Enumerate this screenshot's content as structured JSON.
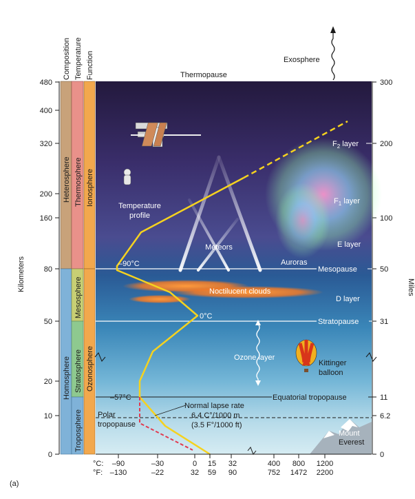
{
  "columns": {
    "composition": "Composition",
    "temperature": "Temperature",
    "function": "Function"
  },
  "bands": {
    "heterosphere": "Heterosphere",
    "homosphere": "Homosphere",
    "thermosphere": "Thermosphere",
    "mesosphere": "Mesosphere",
    "stratosphere": "Stratosphere",
    "troposphere": "Troposphere",
    "ionosphere": "Ionosphere",
    "ozonosphere": "Ozonosphere"
  },
  "axes": {
    "left_label": "Kilometers",
    "right_label": "Miles",
    "km_ticks": [
      "480",
      "400",
      "320",
      "200",
      "160",
      "80",
      "50",
      "20",
      "10",
      "0"
    ],
    "mi_ticks": [
      "300",
      "200",
      "100",
      "50",
      "31",
      "11",
      "6.2",
      "0"
    ],
    "c_prefix": "°C:",
    "f_prefix": "°F:",
    "c_ticks": [
      "–90",
      "–30",
      "0",
      "15",
      "32",
      "400",
      "800",
      "1200"
    ],
    "f_ticks": [
      "–130",
      "–22",
      "32",
      "59",
      "90",
      "752",
      "1472",
      "2200"
    ]
  },
  "labels": {
    "exosphere": "Exosphere",
    "thermopause": "Thermopause",
    "f2_layer_main": "F",
    "f2_layer_sub": "2",
    "f2_layer_rest": " layer",
    "f1_layer_main": "F",
    "f1_layer_sub": "1",
    "f1_layer_rest": " layer",
    "e_layer": "E layer",
    "d_layer": "D layer",
    "temperature_profile_1": "Temperature",
    "temperature_profile_2": "profile",
    "meteors": "Meteors",
    "auroras": "Auroras",
    "mesopause": "Mesopause",
    "minus90": "–90°C",
    "noctilucent": "Noctilucent clouds",
    "zero_c": "0°C",
    "stratopause": "Stratopause",
    "ozone_layer": "Ozone layer",
    "kittinger_1": "Kittinger",
    "kittinger_2": "balloon",
    "minus57": "–57°C",
    "equatorial_tropopause": "Equatorial tropopause",
    "lapse_1": "Normal lapse rate",
    "lapse_2": "6.4 C°/1000 m",
    "lapse_3": "(3.5 F°/1000 ft)",
    "polar_1": "Polar",
    "polar_2": "tropopause",
    "everest_1": "Mount",
    "everest_2": "Everest",
    "panel": "(a)"
  },
  "colors": {
    "heterosphere": "#c8a27a",
    "homosphere": "#7fb2d8",
    "thermosphere": "#e9918a",
    "mesosphere": "#c7cf74",
    "stratosphere": "#8ec98f",
    "troposphere": "#7fb2d8",
    "ionosphere": "#f2a84d",
    "ozonosphere": "#f2a84d",
    "temperature_curve": "#f5d21f",
    "polar_curve": "#e23a4f"
  }
}
